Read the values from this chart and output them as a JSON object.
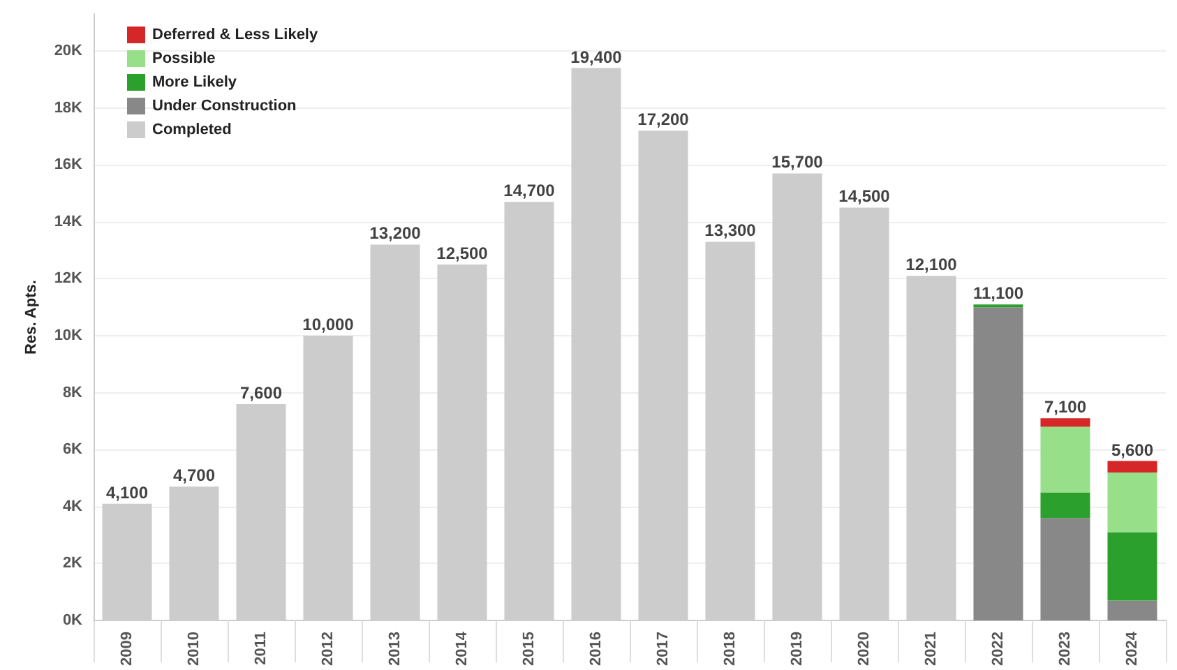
{
  "chart_data": {
    "type": "bar",
    "ylabel": "Res. Apts.",
    "stacked": true,
    "legend": "top left",
    "grid": "y",
    "categories": [
      "2009",
      "2010",
      "2011",
      "2012",
      "2013",
      "2014",
      "2015",
      "2016",
      "2017",
      "2018",
      "2019",
      "2020",
      "2021",
      "2022",
      "2023",
      "2024"
    ],
    "series": [
      {
        "name": "Completed",
        "color": "#cccccc",
        "values": [
          4100,
          4700,
          7600,
          10000,
          13200,
          12500,
          14700,
          19400,
          17200,
          13300,
          15700,
          14500,
          12100,
          null,
          null,
          null
        ]
      },
      {
        "name": "Under Construction",
        "color": "#888888",
        "values": [
          null,
          null,
          null,
          null,
          null,
          null,
          null,
          null,
          null,
          null,
          null,
          null,
          null,
          11000,
          3600,
          700
        ]
      },
      {
        "name": "More Likely",
        "color": "#2ca02c",
        "values": [
          null,
          null,
          null,
          null,
          null,
          null,
          null,
          null,
          null,
          null,
          null,
          null,
          null,
          100,
          900,
          2400
        ]
      },
      {
        "name": "Possible",
        "color": "#98df8a",
        "values": [
          null,
          null,
          null,
          null,
          null,
          null,
          null,
          null,
          null,
          null,
          null,
          null,
          null,
          null,
          2300,
          2100
        ]
      },
      {
        "name": "Deferred & Less Likely",
        "color": "#d62728",
        "values": [
          null,
          null,
          null,
          null,
          null,
          null,
          null,
          null,
          null,
          null,
          null,
          null,
          null,
          null,
          300,
          400
        ]
      }
    ],
    "totals": [
      "4,100",
      "4,700",
      "7,600",
      "10,000",
      "13,200",
      "12,500",
      "14,700",
      "19,400",
      "17,200",
      "13,300",
      "15,700",
      "14,500",
      "12,100",
      "11,100",
      "7,100",
      "5,600"
    ],
    "ylim": [
      0,
      21300
    ],
    "yticks": [
      {
        "value": 0,
        "label": "0K"
      },
      {
        "value": 2000,
        "label": "2K"
      },
      {
        "value": 4000,
        "label": "4K"
      },
      {
        "value": 6000,
        "label": "6K"
      },
      {
        "value": 8000,
        "label": "8K"
      },
      {
        "value": 10000,
        "label": "10K"
      },
      {
        "value": 12000,
        "label": "12K"
      },
      {
        "value": 14000,
        "label": "14K"
      },
      {
        "value": 16000,
        "label": "16K"
      },
      {
        "value": 18000,
        "label": "18K"
      },
      {
        "value": 20000,
        "label": "20K"
      }
    ]
  }
}
